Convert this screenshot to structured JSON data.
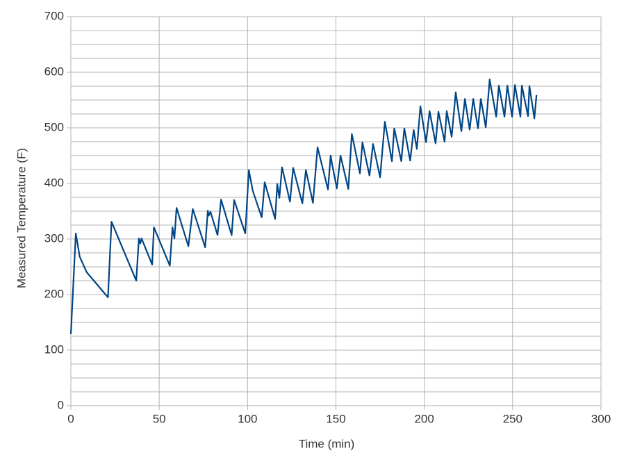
{
  "chart_data": {
    "type": "line",
    "x_label": "Time (min)",
    "y_label": "Measured Temperature (F)",
    "x": [
      0,
      2.8,
      5,
      9,
      21,
      23,
      37,
      38.5,
      39.3,
      40,
      46,
      47,
      56,
      57.5,
      58.6,
      59.8,
      66.5,
      69,
      76,
      77.5,
      78,
      79,
      83,
      85,
      91,
      92.4,
      98.7,
      100.7,
      103,
      108,
      109.7,
      115.6,
      116.8,
      118,
      119.5,
      124,
      125.8,
      131,
      133,
      137,
      139.6,
      145.5,
      147,
      148,
      150.5,
      152.6,
      157,
      159,
      163.6,
      165,
      169,
      171,
      175,
      177.7,
      181.7,
      183,
      187,
      188.7,
      192,
      194,
      195.8,
      197.8,
      201,
      203,
      206.4,
      208,
      211.5,
      212.7,
      215.5,
      217.8,
      221,
      223,
      225.7,
      227.7,
      230.4,
      232,
      234.8,
      237,
      240.7,
      242.2,
      245.4,
      247,
      249.7,
      251.3,
      254.4,
      255.2,
      258.7,
      259.5,
      262.3,
      263.5
    ],
    "series": [
      {
        "name": "Measured Temperature",
        "color": "#004586",
        "values": [
          129,
          310,
          268,
          240,
          195,
          331,
          225,
          301,
          292,
          301,
          254,
          321,
          252,
          321,
          301,
          356,
          287,
          354,
          285,
          351,
          342,
          349,
          307,
          371,
          307,
          370,
          310,
          424,
          386,
          339,
          402,
          336,
          399,
          374,
          429,
          367,
          428,
          364,
          424,
          365,
          465,
          389,
          450,
          432,
          391,
          450,
          390,
          489,
          418,
          474,
          414,
          471,
          411,
          511,
          440,
          499,
          440,
          499,
          441,
          496,
          462,
          539,
          474,
          530,
          472,
          529,
          475,
          530,
          484,
          564,
          494,
          552,
          497,
          552,
          499,
          552,
          501,
          587,
          520,
          576,
          520,
          576,
          520,
          577,
          520,
          576,
          521,
          575,
          517,
          559
        ]
      }
    ],
    "xlim": [
      0,
      300
    ],
    "xticks": [
      0,
      50,
      100,
      150,
      200,
      250,
      300
    ],
    "ylim": [
      0,
      700
    ],
    "yticks": [
      0,
      100,
      200,
      300,
      400,
      500,
      600,
      700
    ],
    "y_minor_ticks": [
      25,
      50,
      75,
      125,
      150,
      175,
      225,
      250,
      275,
      325,
      350,
      375,
      425,
      450,
      475,
      525,
      550,
      575,
      625,
      650,
      675
    ],
    "grid": true,
    "grid_color": "#b3b3b3"
  }
}
